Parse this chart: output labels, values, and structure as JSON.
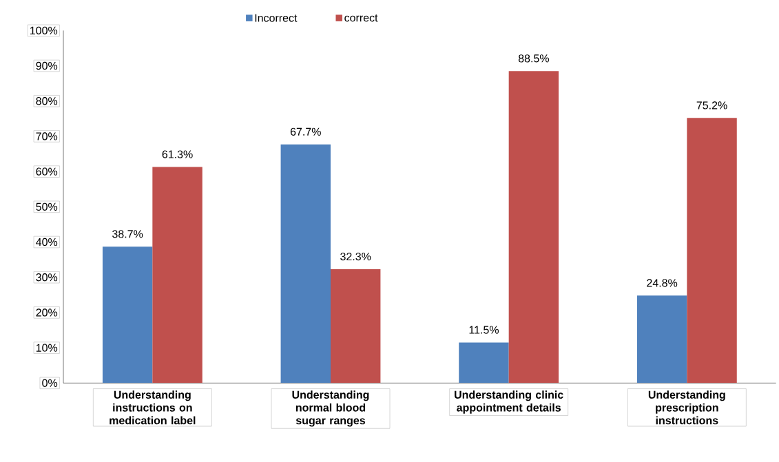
{
  "chart_data": {
    "type": "bar",
    "categories": [
      "Understanding instructions on medication label",
      "Understanding normal blood sugar ranges",
      "Understanding clinic appointment details",
      "Understanding prescription instructions"
    ],
    "series": [
      {
        "name": "Incorrect",
        "color": "#4f81bd",
        "values": [
          38.7,
          67.7,
          11.5,
          24.8
        ],
        "value_labels": [
          "38.7%",
          "67.7%",
          "11.5%",
          "24.8%"
        ]
      },
      {
        "name": "correct",
        "color": "#c0504d",
        "values": [
          61.3,
          32.3,
          88.5,
          75.2
        ],
        "value_labels": [
          "61.3%",
          "32.3%",
          "88.5%",
          "75.2%"
        ]
      }
    ],
    "ylim": [
      0,
      100
    ],
    "yticks": [
      {
        "value": 0,
        "label": "0%"
      },
      {
        "value": 10,
        "label": "10%"
      },
      {
        "value": 20,
        "label": "20%"
      },
      {
        "value": 30,
        "label": "30%"
      },
      {
        "value": 40,
        "label": "40%"
      },
      {
        "value": 50,
        "label": "50%"
      },
      {
        "value": 60,
        "label": "60%"
      },
      {
        "value": 70,
        "label": "70%"
      },
      {
        "value": 80,
        "label": "80%"
      },
      {
        "value": 90,
        "label": "90%"
      },
      {
        "value": 100,
        "label": "100%"
      }
    ],
    "grid": false,
    "legend": "top"
  }
}
